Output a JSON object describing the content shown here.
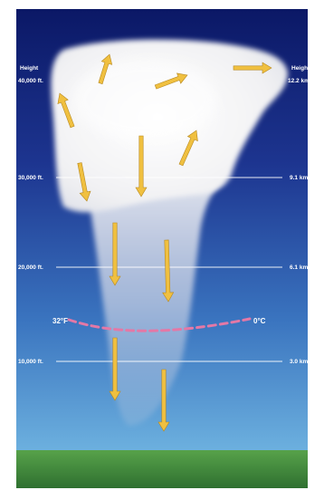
{
  "left_axis": {
    "title": "Height",
    "ticks": [
      "40,000 ft.",
      "30,000 ft.",
      "20,000 ft.",
      "10,000 ft."
    ]
  },
  "right_axis": {
    "title": "Height",
    "ticks": [
      "12.2 km",
      "9.1 km",
      "6.1 km",
      "3.0 km"
    ]
  },
  "freezing_level": {
    "fahrenheit": "32°F",
    "celsius": "0°C"
  },
  "colors": {
    "sky_top": "#0d1a6a",
    "sky_bottom": "#5a9ed6",
    "ground": "#3e8a3a",
    "cloud": "#f4f4f4",
    "arrow": "#f0c040",
    "freezing_line": "#e070a0",
    "height_line": "#ffffff"
  },
  "icons": [
    "arrow-icon"
  ]
}
